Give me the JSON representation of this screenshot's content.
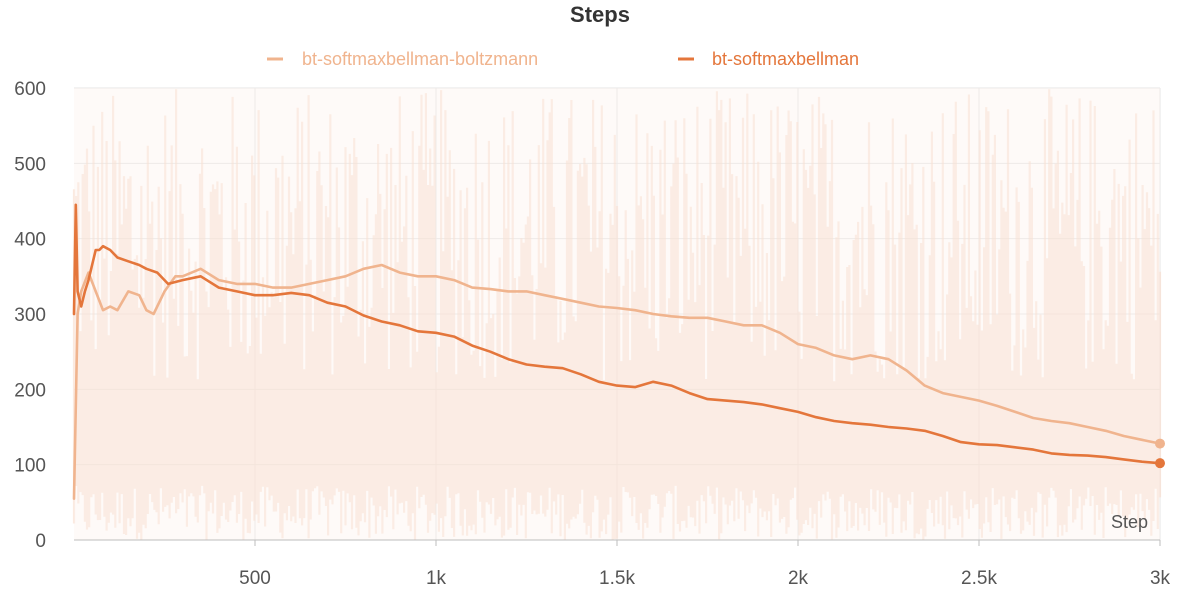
{
  "chart_data": {
    "type": "line",
    "title": "Steps",
    "xlabel": "Step",
    "ylabel": "",
    "xlim": [
      0,
      3000
    ],
    "ylim": [
      0,
      600
    ],
    "x_ticks": [
      500,
      1000,
      1500,
      2000,
      2500,
      3000
    ],
    "x_tick_labels": [
      "500",
      "1k",
      "1.5k",
      "2k",
      "2.5k",
      "3k"
    ],
    "y_ticks": [
      0,
      100,
      200,
      300,
      400,
      500,
      600
    ],
    "y_tick_labels": [
      "0",
      "100",
      "200",
      "300",
      "400",
      "500",
      "600"
    ],
    "grid": true,
    "legend_position": "top-center",
    "series": [
      {
        "name": "bt-softmaxbellman-boltzmann",
        "color": "#f0b48e",
        "x": [
          0,
          10,
          20,
          40,
          60,
          80,
          100,
          120,
          150,
          180,
          200,
          220,
          250,
          280,
          300,
          350,
          400,
          450,
          500,
          550,
          600,
          650,
          700,
          750,
          800,
          850,
          900,
          950,
          1000,
          1050,
          1100,
          1150,
          1200,
          1250,
          1300,
          1350,
          1400,
          1450,
          1500,
          1550,
          1600,
          1650,
          1700,
          1750,
          1800,
          1850,
          1900,
          1950,
          2000,
          2050,
          2100,
          2150,
          2200,
          2250,
          2300,
          2350,
          2400,
          2450,
          2500,
          2550,
          2600,
          2650,
          2700,
          2750,
          2800,
          2850,
          2900,
          2950,
          3000
        ],
        "y": [
          55,
          300,
          330,
          355,
          330,
          305,
          310,
          305,
          330,
          325,
          305,
          300,
          330,
          350,
          350,
          360,
          345,
          340,
          340,
          335,
          335,
          340,
          345,
          350,
          360,
          365,
          355,
          350,
          350,
          345,
          335,
          333,
          330,
          330,
          325,
          320,
          315,
          310,
          308,
          305,
          300,
          297,
          295,
          295,
          290,
          285,
          285,
          275,
          260,
          255,
          245,
          240,
          245,
          240,
          225,
          205,
          195,
          190,
          185,
          178,
          170,
          162,
          158,
          155,
          150,
          145,
          138,
          133,
          128
        ]
      },
      {
        "name": "bt-softmaxbellman",
        "color": "#e4763b",
        "x": [
          0,
          5,
          10,
          20,
          30,
          40,
          50,
          60,
          70,
          80,
          100,
          120,
          150,
          180,
          200,
          230,
          260,
          300,
          350,
          400,
          450,
          500,
          550,
          600,
          650,
          700,
          750,
          800,
          850,
          900,
          950,
          1000,
          1050,
          1100,
          1150,
          1200,
          1250,
          1300,
          1350,
          1400,
          1450,
          1500,
          1550,
          1600,
          1650,
          1700,
          1750,
          1800,
          1850,
          1900,
          1950,
          2000,
          2050,
          2100,
          2150,
          2200,
          2250,
          2300,
          2350,
          2400,
          2450,
          2500,
          2550,
          2600,
          2650,
          2700,
          2750,
          2800,
          2850,
          2900,
          2950,
          3000
        ],
        "y": [
          300,
          445,
          330,
          310,
          330,
          345,
          365,
          385,
          385,
          390,
          385,
          375,
          370,
          365,
          360,
          355,
          340,
          345,
          350,
          335,
          330,
          325,
          325,
          328,
          325,
          315,
          310,
          298,
          290,
          285,
          277,
          275,
          270,
          258,
          250,
          240,
          233,
          230,
          228,
          220,
          210,
          205,
          203,
          210,
          205,
          195,
          187,
          185,
          183,
          180,
          175,
          170,
          163,
          158,
          155,
          153,
          150,
          148,
          145,
          138,
          130,
          127,
          126,
          123,
          120,
          115,
          113,
          112,
          110,
          107,
          104,
          102
        ]
      }
    ]
  }
}
